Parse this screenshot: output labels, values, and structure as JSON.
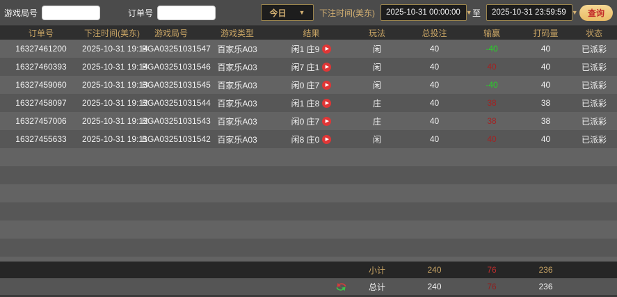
{
  "topbar": {
    "game_round_label": "游戏局号",
    "order_no_label": "订单号",
    "game_round_value": "",
    "order_no_value": "",
    "period_selected": "今日",
    "bet_time_label": "下注时间(美东)",
    "date_from": "2025-10-31 00:00:00",
    "to_label": "至",
    "date_to": "2025-10-31 23:59:59",
    "query_button": "查询",
    "chevron_glyph": "▼"
  },
  "table": {
    "headers": [
      "订单号",
      "下注时间(美东)",
      "游戏局号",
      "游戏类型",
      "结果",
      "玩法",
      "总投注",
      "输赢",
      "打码量",
      "状态"
    ],
    "rows": [
      {
        "order_no": "16327461200",
        "bet_time": "2025-10-31 19:14",
        "round_no": "BGA03251031547",
        "game_type": "百家乐A03",
        "result": "闲1 庄9",
        "play": "闲",
        "total_bet": "40",
        "win_lose": "-40",
        "win_lose_color": "green",
        "turnover": "40",
        "status": "已派彩"
      },
      {
        "order_no": "16327460393",
        "bet_time": "2025-10-31 19:14",
        "round_no": "BGA03251031546",
        "game_type": "百家乐A03",
        "result": "闲7 庄1",
        "play": "闲",
        "total_bet": "40",
        "win_lose": "40",
        "win_lose_color": "red",
        "turnover": "40",
        "status": "已派彩"
      },
      {
        "order_no": "16327459060",
        "bet_time": "2025-10-31 19:13",
        "round_no": "BGA03251031545",
        "game_type": "百家乐A03",
        "result": "闲0 庄7",
        "play": "闲",
        "total_bet": "40",
        "win_lose": "-40",
        "win_lose_color": "green",
        "turnover": "40",
        "status": "已派彩"
      },
      {
        "order_no": "16327458097",
        "bet_time": "2025-10-31 19:12",
        "round_no": "BGA03251031544",
        "game_type": "百家乐A03",
        "result": "闲1 庄8",
        "play": "庄",
        "total_bet": "40",
        "win_lose": "38",
        "win_lose_color": "red",
        "turnover": "38",
        "status": "已派彩"
      },
      {
        "order_no": "16327457006",
        "bet_time": "2025-10-31 19:12",
        "round_no": "BGA03251031543",
        "game_type": "百家乐A03",
        "result": "闲0 庄7",
        "play": "庄",
        "total_bet": "40",
        "win_lose": "38",
        "win_lose_color": "red",
        "turnover": "38",
        "status": "已派彩"
      },
      {
        "order_no": "16327455633",
        "bet_time": "2025-10-31 19:11",
        "round_no": "BGA03251031542",
        "game_type": "百家乐A03",
        "result": "闲8 庄0",
        "play": "闲",
        "total_bet": "40",
        "win_lose": "40",
        "win_lose_color": "red",
        "turnover": "40",
        "status": "已派彩"
      }
    ],
    "play_icon_glyph": "▶",
    "subtotal": {
      "label": "小计",
      "total_bet": "240",
      "win_lose": "76",
      "turnover": "236"
    },
    "grand_total": {
      "label": "总计",
      "total_bet": "240",
      "win_lose": "76",
      "turnover": "236"
    }
  },
  "colors": {
    "accent_gold": "#c9a565",
    "win_green": "#27d327",
    "lose_red": "#a32222",
    "query_button_gold": "#eec67a",
    "query_button_text": "#c22727",
    "row_light": "#636363",
    "row_dark": "#575757"
  }
}
